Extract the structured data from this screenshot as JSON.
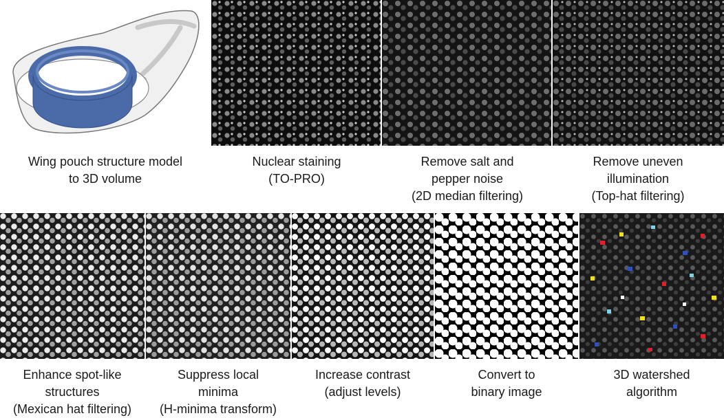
{
  "top_row": [
    {
      "id": "model",
      "caption": [
        "Wing pouch structure model",
        "to 3D volume"
      ]
    },
    {
      "id": "nuclear",
      "caption": [
        "Nuclear staining",
        "(TO-PRO)"
      ]
    },
    {
      "id": "median",
      "caption": [
        "Remove salt and",
        "pepper noise",
        "(2D median filtering)"
      ]
    },
    {
      "id": "tophat",
      "caption": [
        "Remove uneven",
        "illumination",
        "(Top-hat filtering)"
      ]
    }
  ],
  "bottom_row": [
    {
      "id": "mexican",
      "caption": [
        "Enhance spot-like",
        "structures",
        "(Mexican hat filtering)"
      ]
    },
    {
      "id": "hminima",
      "caption": [
        "Suppress local",
        "minima",
        "(H-minima transform)"
      ]
    },
    {
      "id": "contrast",
      "caption": [
        "Increase contrast",
        "(adjust levels)"
      ]
    },
    {
      "id": "binary",
      "caption": [
        "Convert to",
        "binary image"
      ]
    },
    {
      "id": "watershed",
      "caption": [
        "3D watershed",
        "algorithm"
      ]
    }
  ],
  "colors": {
    "ring": "#4a6aa8",
    "ring_dark": "#34508a",
    "label_red": "#e0202a",
    "label_yellow": "#f0e020",
    "label_cyan": "#7fd3e8",
    "label_blue": "#3050c0"
  }
}
